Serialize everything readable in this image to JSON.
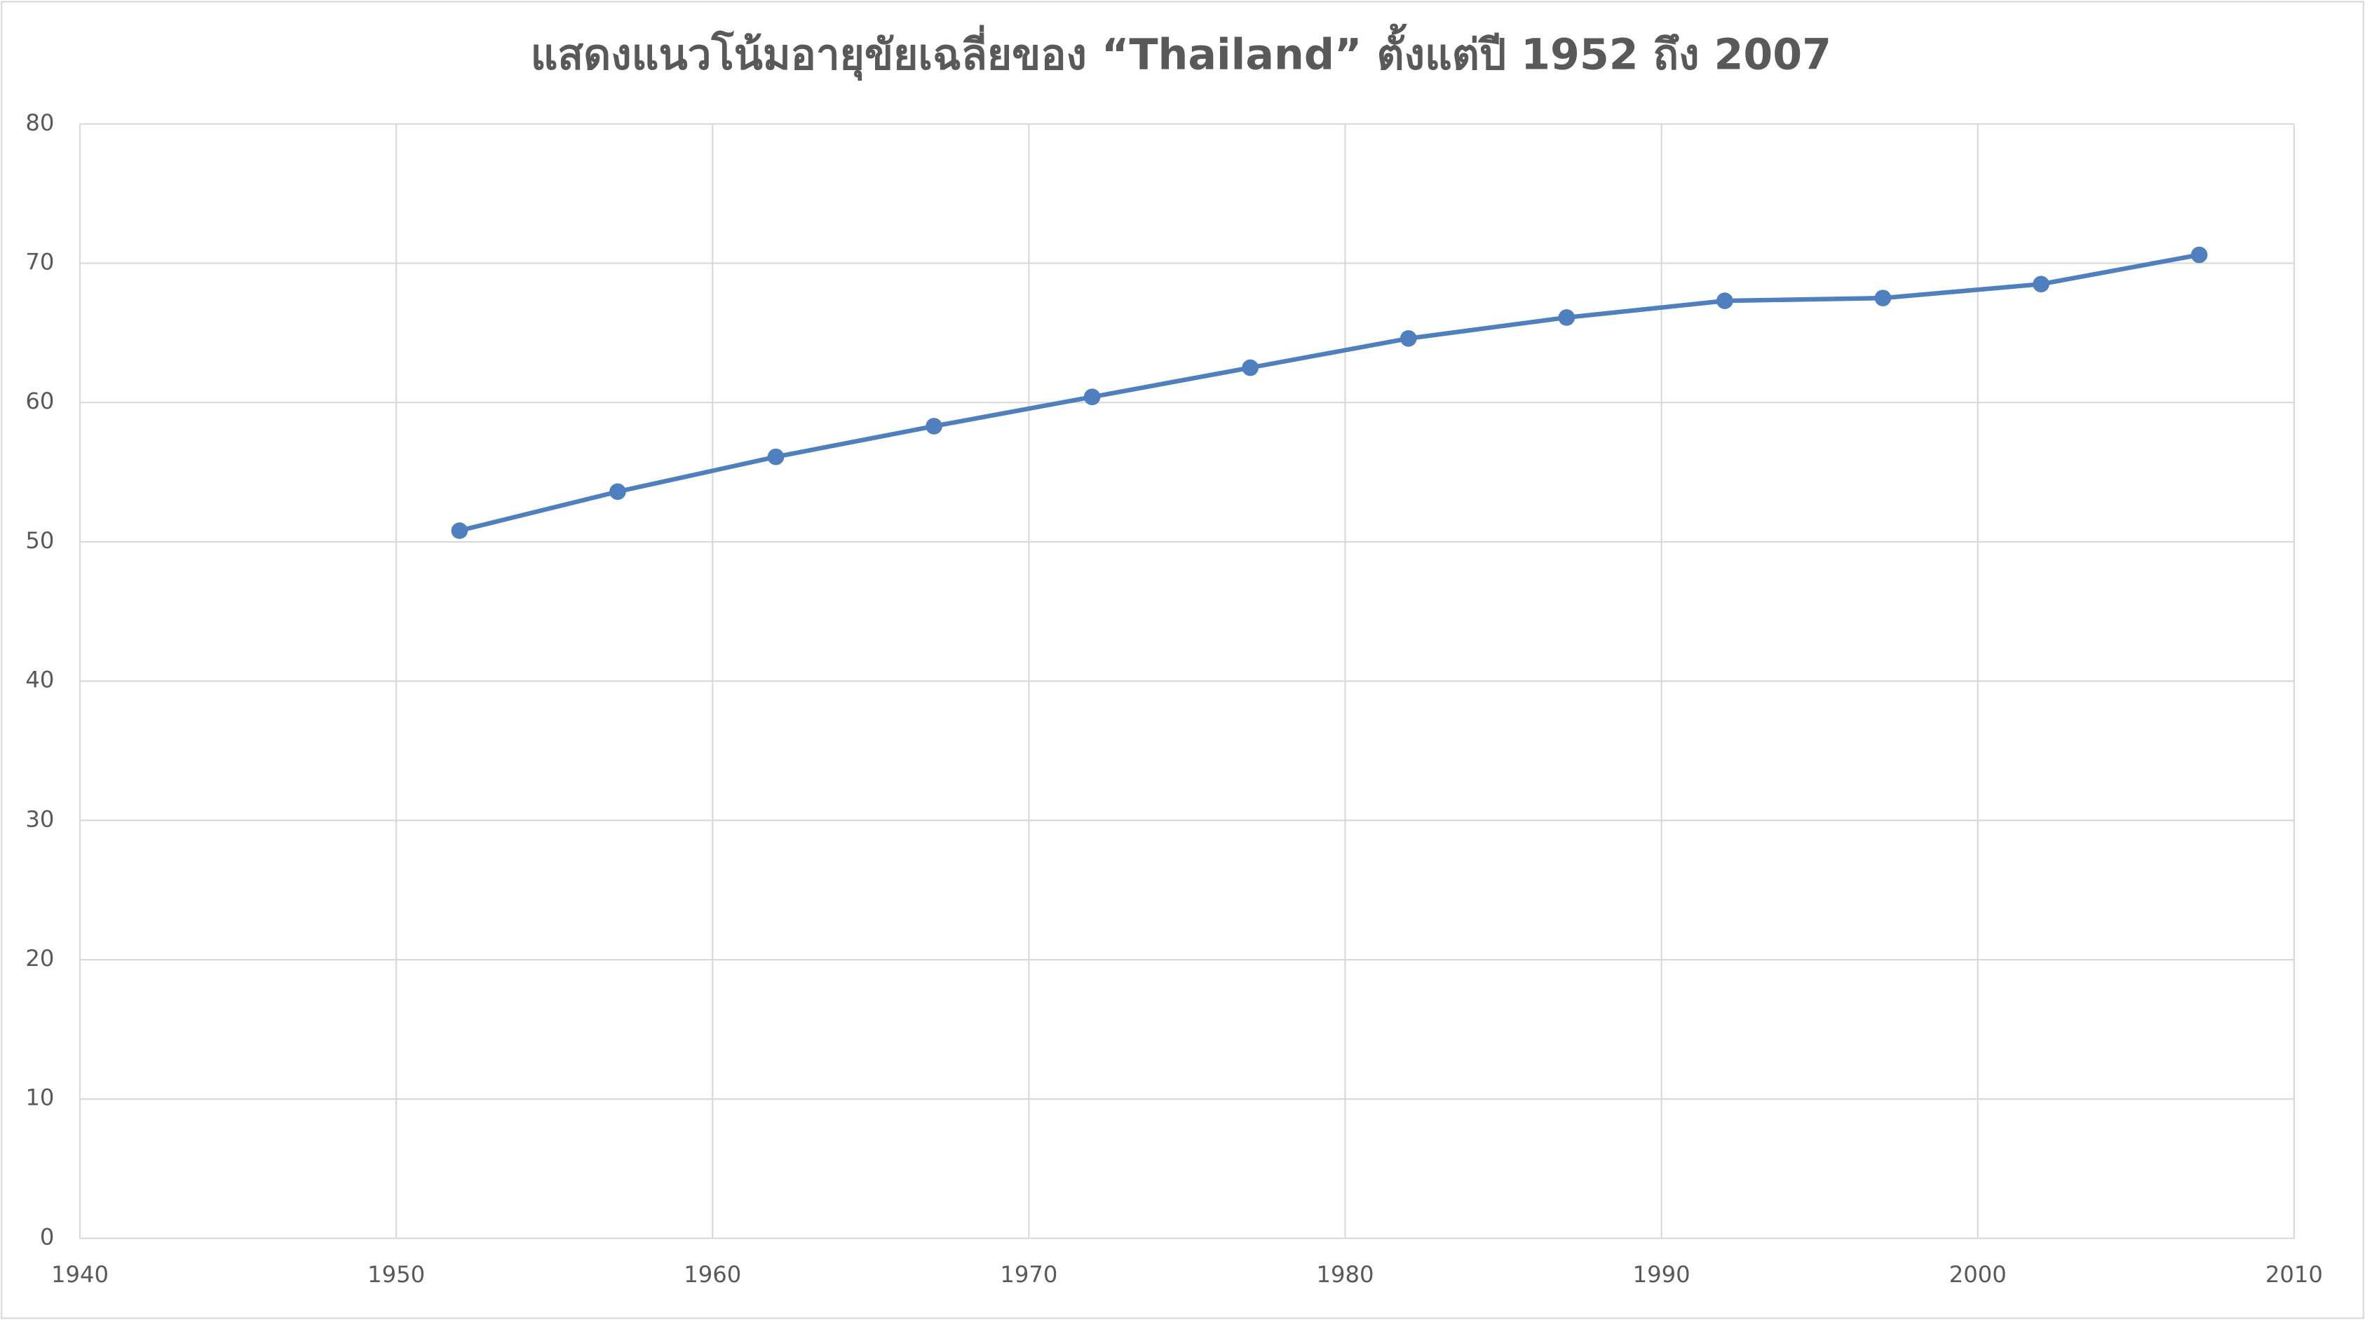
{
  "chart_data": {
    "type": "line",
    "title": "แสดงแนวโน้มอายุขัยเฉลี่ยของ “Thailand” ตั้งแต่ปี 1952 ถึง 2007",
    "x": [
      1952,
      1957,
      1962,
      1967,
      1972,
      1977,
      1982,
      1987,
      1992,
      1997,
      2002,
      2007
    ],
    "series": [
      {
        "name": "Thailand",
        "color": "#4f7fbd",
        "values": [
          50.8,
          53.6,
          56.1,
          58.3,
          60.4,
          62.5,
          64.6,
          66.1,
          67.3,
          67.5,
          68.5,
          70.6
        ]
      }
    ],
    "xlim": [
      1940,
      2010
    ],
    "xticks": [
      1940,
      1950,
      1960,
      1970,
      1980,
      1990,
      2000,
      2010
    ],
    "ylim": [
      0,
      80
    ],
    "yticks": [
      0,
      10,
      20,
      30,
      40,
      50,
      60,
      70,
      80
    ],
    "grid": true
  }
}
